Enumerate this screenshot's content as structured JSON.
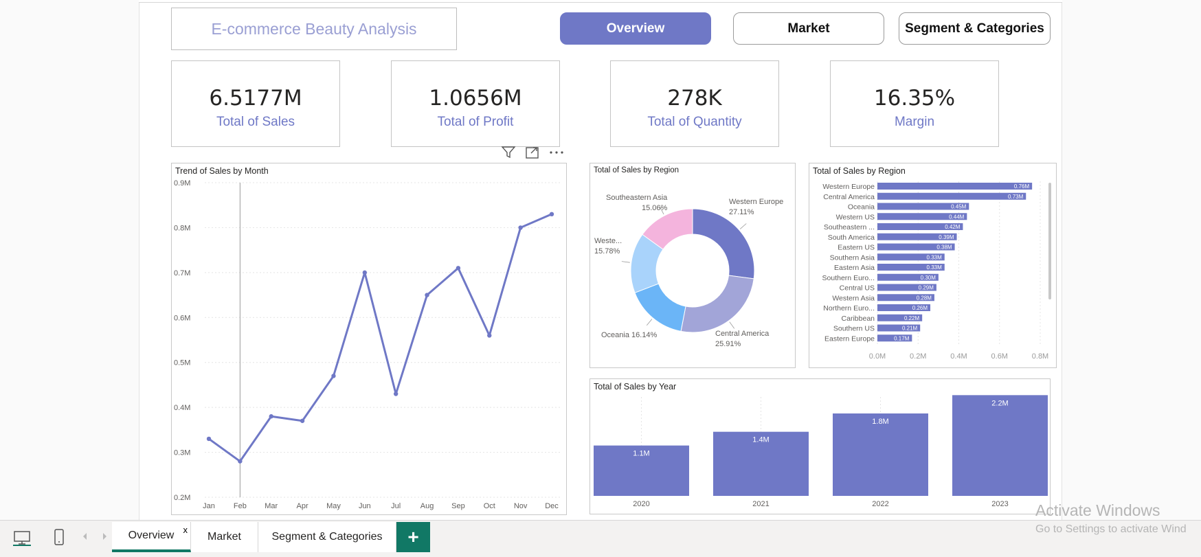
{
  "header": {
    "title": "E-commerce Beauty Analysis",
    "nav": [
      "Overview",
      "Market",
      "Segment & Categories"
    ]
  },
  "kpis": [
    {
      "value": "6.5177M",
      "label": "Total of Sales"
    },
    {
      "value": "1.0656M",
      "label": "Total of Profit"
    },
    {
      "value": "278K",
      "label": "Total of Quantity"
    },
    {
      "value": "16.35%",
      "label": "Margin"
    }
  ],
  "chart_data": [
    {
      "type": "line",
      "title": "Trend of Sales by Month",
      "x": [
        "Jan",
        "Feb",
        "Mar",
        "Apr",
        "May",
        "Jun",
        "Jul",
        "Aug",
        "Sep",
        "Oct",
        "Nov",
        "Dec"
      ],
      "values": [
        0.33,
        0.28,
        0.38,
        0.37,
        0.47,
        0.7,
        0.43,
        0.65,
        0.71,
        0.56,
        0.8,
        0.83
      ],
      "yticks": [
        "0.2M",
        "0.3M",
        "0.4M",
        "0.5M",
        "0.6M",
        "0.7M",
        "0.8M",
        "0.9M"
      ],
      "ylim": [
        0.2,
        0.9
      ],
      "color": "#6f78c6"
    },
    {
      "type": "pie",
      "title": "Total of Sales by Region",
      "slices": [
        {
          "label": "Western Europe",
          "pct": "27.11%",
          "value": 27.11,
          "color": "#6f78c6"
        },
        {
          "label": "Central America",
          "pct": "25.91%",
          "value": 25.91,
          "color": "#a2a5d8"
        },
        {
          "label": "Oceania",
          "pct": "16.14%",
          "value": 16.14,
          "color": "#6bb5f7"
        },
        {
          "label": "Weste...",
          "pct": "15.78%",
          "value": 15.78,
          "color": "#a9d3fb"
        },
        {
          "label": "Southeastern Asia",
          "pct": "15.06%",
          "value": 15.06,
          "color": "#f4b4dd"
        }
      ]
    },
    {
      "type": "bar",
      "orientation": "horizontal",
      "title": "Total of Sales by Region",
      "categories": [
        "Western Europe",
        "Central America",
        "Oceania",
        "Western US",
        "Southeastern ...",
        "South America",
        "Eastern US",
        "Southern Asia",
        "Eastern Asia",
        "Southern Euro...",
        "Central US",
        "Western Asia",
        "Northern Euro...",
        "Caribbean",
        "Southern US",
        "Eastern Europe"
      ],
      "values": [
        0.76,
        0.73,
        0.45,
        0.44,
        0.42,
        0.39,
        0.38,
        0.33,
        0.33,
        0.3,
        0.29,
        0.28,
        0.26,
        0.22,
        0.21,
        0.17
      ],
      "labels": [
        "0.76M",
        "0.73M",
        "0.45M",
        "0.44M",
        "0.42M",
        "0.39M",
        "0.38M",
        "0.33M",
        "0.33M",
        "0.30M",
        "0.29M",
        "0.28M",
        "0.26M",
        "0.22M",
        "0.21M",
        "0.17M"
      ],
      "xticks": [
        "0.0M",
        "0.2M",
        "0.4M",
        "0.6M",
        "0.8M"
      ],
      "xlim": [
        0,
        0.8
      ],
      "color": "#6f78c6"
    },
    {
      "type": "bar",
      "title": "Total of Sales by Year",
      "categories": [
        "2020",
        "2021",
        "2022",
        "2023"
      ],
      "values": [
        1.1,
        1.4,
        1.8,
        2.2
      ],
      "labels": [
        "1.1M",
        "1.4M",
        "1.8M",
        "2.2M"
      ],
      "color": "#6f78c6"
    }
  ],
  "bottom_tabs": [
    "Overview",
    "Market",
    "Segment & Categories"
  ],
  "tab_close": "x",
  "add_tab": "+",
  "watermark": {
    "line1": "Activate Windows",
    "line2": "Go to Settings to activate Wind"
  }
}
